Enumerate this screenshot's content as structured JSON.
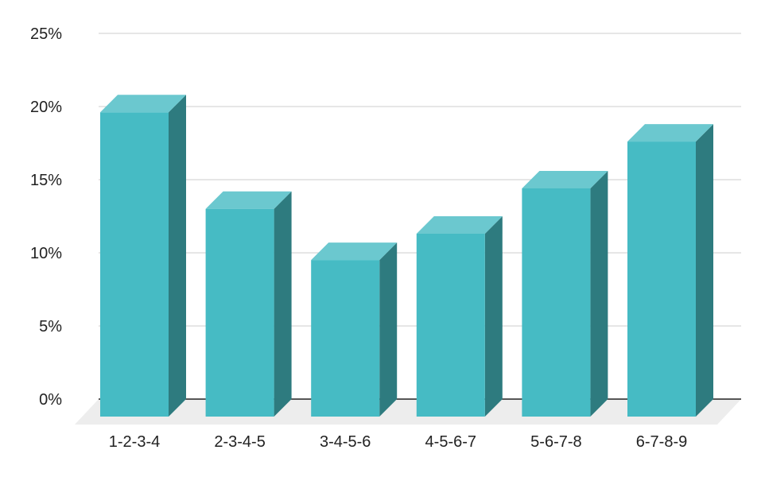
{
  "chart_data": {
    "type": "bar",
    "title": "",
    "xlabel": "",
    "ylabel": "",
    "categories": [
      "1-2-3-4",
      "2-3-4-5",
      "3-4-5-6",
      "4-5-6-7",
      "5-6-7-8",
      "6-7-8-9"
    ],
    "values": [
      20.8,
      14.2,
      10.7,
      12.5,
      15.6,
      18.8
    ],
    "ylim": [
      0,
      25
    ],
    "yticks": [
      0,
      5,
      10,
      15,
      20,
      25
    ],
    "ytick_labels": [
      "0%",
      "5%",
      "10%",
      "15%",
      "20%",
      "25%"
    ],
    "grid": true,
    "style": "3d",
    "colors": {
      "bar_front": "#46BBC4",
      "bar_top": "#6BC8CF",
      "bar_side": "#2E7B7F",
      "floor": "#EDEDED",
      "grid": "#CCCCCC",
      "axis": "#222222"
    }
  }
}
